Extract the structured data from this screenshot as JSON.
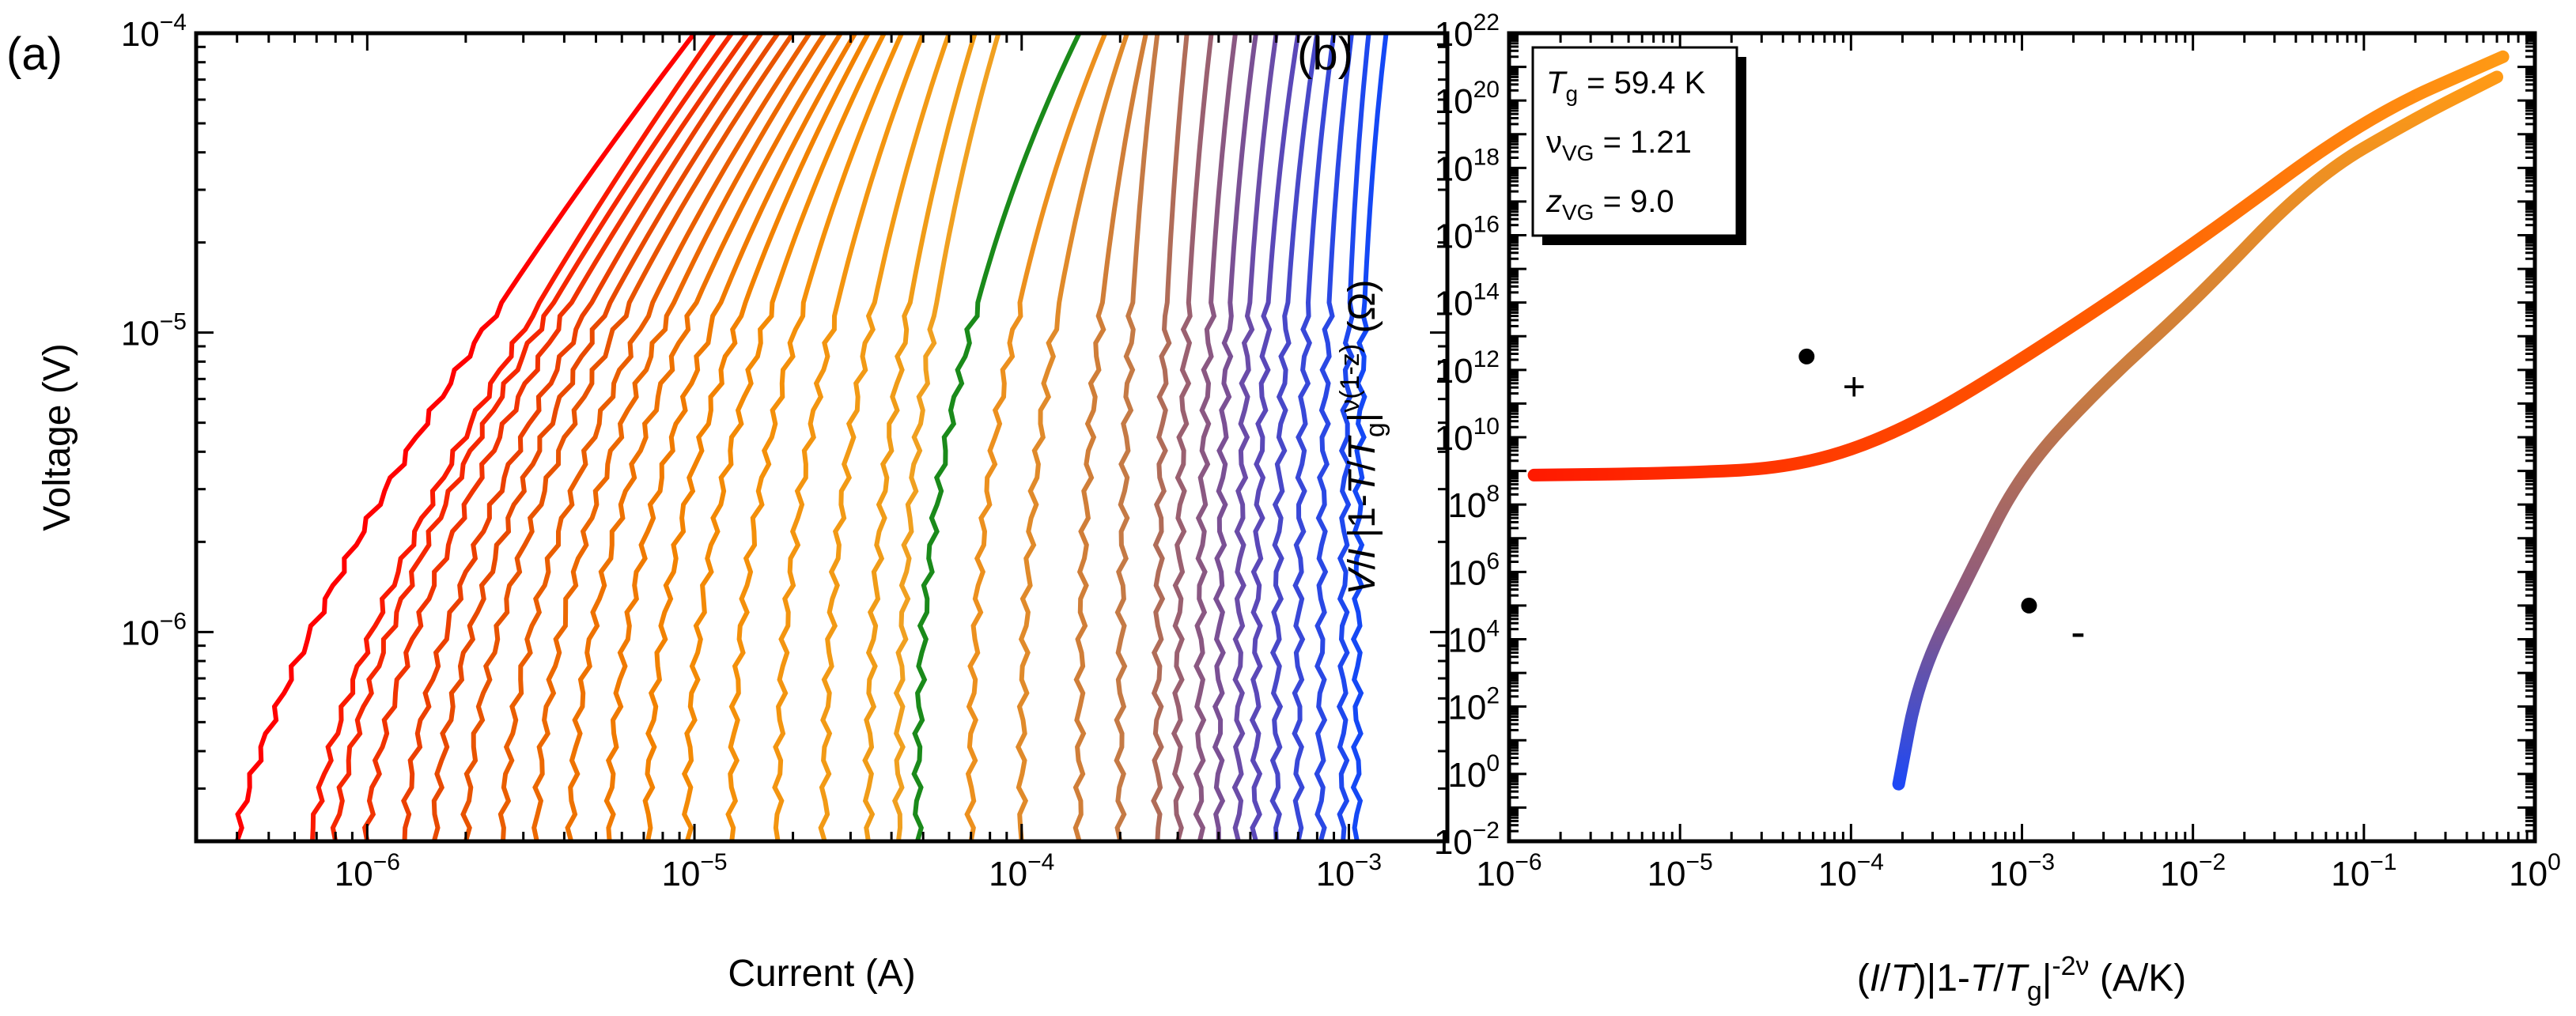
{
  "chart_data": [
    {
      "panel_label": "(a)",
      "type": "line",
      "xlabel": "Current  (A)",
      "ylabel": "Voltage  (V)",
      "xscale": "log",
      "yscale": "log",
      "xlim": [
        3e-07,
        0.002
      ],
      "ylim": [
        2e-07,
        0.0001
      ],
      "x_ticks": [
        {
          "base": "10",
          "exp": "−6",
          "value": 1e-06
        },
        {
          "base": "10",
          "exp": "−5",
          "value": 1e-05
        },
        {
          "base": "10",
          "exp": "−4",
          "value": 0.0001
        },
        {
          "base": "10",
          "exp": "−3",
          "value": 0.001
        }
      ],
      "y_ticks": [
        {
          "base": "10",
          "exp": "−6",
          "value": 1e-06
        },
        {
          "base": "10",
          "exp": "−5",
          "value": 1e-05
        },
        {
          "base": "10",
          "exp": "−4",
          "value": 0.0001
        }
      ],
      "series_description": "I-V isotherms colored from red (low temperature) to blue (high temperature); green curve marks Tg",
      "series": [
        {
          "name": "curve-01",
          "color": "#ff0000",
          "i_start": 4e-07,
          "i_top": 1e-05
        },
        {
          "name": "curve-02",
          "color": "#fa1a00",
          "i_start": 6.8e-07,
          "i_top": 1.15e-05
        },
        {
          "name": "curve-03",
          "color": "#f52800",
          "i_start": 8e-07,
          "i_top": 1.3e-05
        },
        {
          "name": "curve-04",
          "color": "#f03400",
          "i_start": 1e-06,
          "i_top": 1.45e-05
        },
        {
          "name": "curve-05",
          "color": "#eb4000",
          "i_start": 1.3e-06,
          "i_top": 1.6e-05
        },
        {
          "name": "curve-06",
          "color": "#e84a00",
          "i_start": 1.6e-06,
          "i_top": 1.8e-05
        },
        {
          "name": "curve-07",
          "color": "#e85400",
          "i_start": 2e-06,
          "i_top": 2e-05
        },
        {
          "name": "curve-08",
          "color": "#ea5e00",
          "i_start": 2.6e-06,
          "i_top": 2.25e-05
        },
        {
          "name": "curve-09",
          "color": "#ec6800",
          "i_start": 3.3e-06,
          "i_top": 2.5e-05
        },
        {
          "name": "curve-10",
          "color": "#ee7200",
          "i_start": 4.2e-06,
          "i_top": 2.8e-05
        },
        {
          "name": "curve-11",
          "color": "#f07a00",
          "i_start": 5.5e-06,
          "i_top": 3.1e-05
        },
        {
          "name": "curve-12",
          "color": "#f28200",
          "i_start": 7.2e-06,
          "i_top": 3.4e-05
        },
        {
          "name": "curve-13",
          "color": "#f38a05",
          "i_start": 9.5e-06,
          "i_top": 3.8e-05
        },
        {
          "name": "curve-14",
          "color": "#f4900a",
          "i_start": 1.3e-05,
          "i_top": 4.3e-05
        },
        {
          "name": "curve-15",
          "color": "#f39510",
          "i_start": 1.8e-05,
          "i_top": 5e-05
        },
        {
          "name": "curve-16",
          "color": "#f29a15",
          "i_start": 2.5e-05,
          "i_top": 6e-05
        },
        {
          "name": "curve-17",
          "color": "#f09c18",
          "i_start": 3.4e-05,
          "i_top": 7.2e-05
        },
        {
          "name": "curve-18",
          "color": "#f0a020",
          "i_start": 4.2e-05,
          "i_top": 8.5e-05
        },
        {
          "name": "Tg (green)",
          "color": "#1a8a1a",
          "i_start": 4.8e-05,
          "i_top": 0.00015
        },
        {
          "name": "curve-19",
          "color": "#ec901e",
          "i_start": 7e-05,
          "i_top": 0.00018
        },
        {
          "name": "curve-20",
          "color": "#e08a2a",
          "i_start": 0.0001,
          "i_top": 0.00021
        },
        {
          "name": "curve-21",
          "color": "#d07e38",
          "i_start": 0.00015,
          "i_top": 0.00024
        },
        {
          "name": "curve-22",
          "color": "#c57a45",
          "i_start": 0.0002,
          "i_top": 0.00026
        },
        {
          "name": "curve-23",
          "color": "#b06c58",
          "i_start": 0.00026,
          "i_top": 0.00032
        },
        {
          "name": "curve-24",
          "color": "#9a6070",
          "i_start": 0.0003,
          "i_top": 0.00038
        },
        {
          "name": "curve-25",
          "color": "#8a5882",
          "i_start": 0.00035,
          "i_top": 0.00045
        },
        {
          "name": "curve-26",
          "color": "#7a5094",
          "i_start": 0.0004,
          "i_top": 0.00052
        },
        {
          "name": "curve-27",
          "color": "#6a4ca8",
          "i_start": 0.00046,
          "i_top": 0.0006
        },
        {
          "name": "curve-28",
          "color": "#5a48b8",
          "i_start": 0.00052,
          "i_top": 0.0007
        },
        {
          "name": "curve-29",
          "color": "#4848c8",
          "i_start": 0.0006,
          "i_top": 0.0008
        },
        {
          "name": "curve-30",
          "color": "#3848d8",
          "i_start": 0.0007,
          "i_top": 0.0009
        },
        {
          "name": "curve-31",
          "color": "#2a48e4",
          "i_start": 0.00082,
          "i_top": 0.00102
        },
        {
          "name": "curve-32",
          "color": "#1e48ee",
          "i_start": 0.00096,
          "i_top": 0.00115
        },
        {
          "name": "curve-33",
          "color": "#1448f5",
          "i_start": 0.00106,
          "i_top": 0.0013
        }
      ]
    },
    {
      "panel_label": "(b)",
      "type": "scatter",
      "xlabel_parts": [
        "(",
        "I",
        "/",
        "T",
        ")|1-",
        "T",
        "/",
        "T",
        "g",
        "|",
        "-2ν",
        "  (A/K)"
      ],
      "ylabel_parts": [
        "V",
        "/",
        "I",
        " |1-",
        "T",
        "/",
        "T",
        "g",
        "|",
        "ν(1-z)",
        "  (Ω)"
      ],
      "xscale": "log",
      "yscale": "log",
      "xlim": [
        1e-06,
        1
      ],
      "ylim": [
        0.01,
        1e+22
      ],
      "x_ticks": [
        {
          "base": "10",
          "exp": "−6",
          "value": 1e-06
        },
        {
          "base": "10",
          "exp": "−5",
          "value": 1e-05
        },
        {
          "base": "10",
          "exp": "−4",
          "value": 0.0001
        },
        {
          "base": "10",
          "exp": "−3",
          "value": 0.001
        },
        {
          "base": "10",
          "exp": "−2",
          "value": 0.01
        },
        {
          "base": "10",
          "exp": "−1",
          "value": 0.1
        },
        {
          "base": "10",
          "exp": "0",
          "value": 1
        }
      ],
      "y_ticks": [
        {
          "base": "10",
          "exp": "−2",
          "value": 0.01
        },
        {
          "base": "10",
          "exp": "0",
          "value": 1
        },
        {
          "base": "10",
          "exp": "2",
          "value": 100.0
        },
        {
          "base": "10",
          "exp": "4",
          "value": 10000.0
        },
        {
          "base": "10",
          "exp": "6",
          "value": 1000000.0
        },
        {
          "base": "10",
          "exp": "8",
          "value": 100000000.0
        },
        {
          "base": "10",
          "exp": "10",
          "value": 10000000000.0
        },
        {
          "base": "10",
          "exp": "12",
          "value": 1000000000000.0
        },
        {
          "base": "10",
          "exp": "14",
          "value": 100000000000000.0
        },
        {
          "base": "10",
          "exp": "16",
          "value": 1e+16
        },
        {
          "base": "10",
          "exp": "18",
          "value": 1e+18
        },
        {
          "base": "10",
          "exp": "20",
          "value": 1e+20
        },
        {
          "base": "10",
          "exp": "22",
          "value": 1e+22
        }
      ],
      "legend": {
        "placement": "top-left",
        "entries": [
          {
            "symbol": "T",
            "sub": "g",
            "text": " = 59.4 K"
          },
          {
            "symbol": "ν",
            "sub": "VG",
            "text": " = 1.21"
          },
          {
            "symbol": "z",
            "sub": "VG",
            "text": " = 9.0"
          }
        ]
      },
      "branches": [
        {
          "name": "plus-branch",
          "label": "+",
          "marker_point": [
            5.5e-05,
            2500000000000.0
          ],
          "points": [
            [
              1.4e-06,
              750000000.0
            ],
            [
              1e-05,
              850000000.0
            ],
            [
              5e-05,
              1300000000.0
            ],
            [
              0.0002,
              15000000000.0
            ],
            [
              0.001,
              2000000000000.0
            ],
            [
              0.01,
              5000000000000000.0
            ],
            [
              0.1,
              3e+19
            ],
            [
              0.65,
              2e+21
            ]
          ],
          "gradient": [
            "#ff1a00",
            "#ff6200",
            "#ff9a15"
          ]
        },
        {
          "name": "minus-branch",
          "label": "-",
          "marker_point": [
            0.0011,
            100000.0
          ],
          "points": [
            [
              0.00019,
              0.5
            ],
            [
              0.00025,
              800.0
            ],
            [
              0.0005,
              1000000.0
            ],
            [
              0.001,
              1000000000.0
            ],
            [
              0.003,
              400000000000.0
            ],
            [
              0.01,
              100000000000000.0
            ],
            [
              0.05,
              5e+17
            ],
            [
              0.2,
              3e+19
            ],
            [
              0.6,
              5e+20
            ]
          ],
          "gradient": [
            "#1e48f5",
            "#8a5882",
            "#c67a42",
            "#ff9a15"
          ]
        }
      ]
    }
  ]
}
